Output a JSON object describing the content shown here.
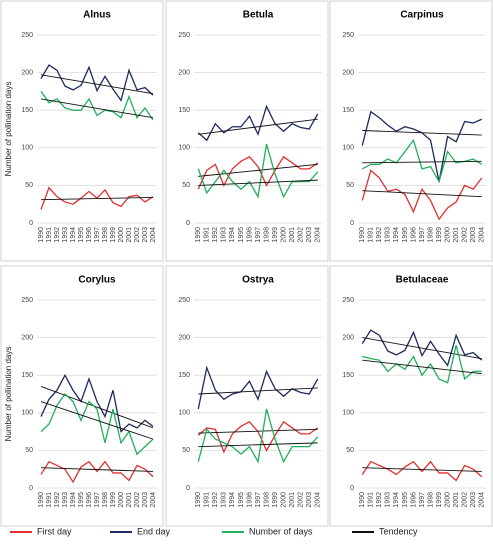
{
  "chart_data": [
    {
      "type": "line",
      "title": "Alnus",
      "ylabel": "Number of pollination days",
      "x": [
        1990,
        1991,
        1992,
        1993,
        1994,
        1995,
        1996,
        1997,
        1998,
        1999,
        2000,
        2001,
        2002,
        2003,
        2004
      ],
      "ylim": [
        0,
        250
      ],
      "yticks": [
        0,
        50,
        100,
        150,
        200,
        250
      ],
      "grid": true,
      "series": [
        {
          "name": "First day",
          "color": "#e03030",
          "values": [
            18,
            47,
            35,
            28,
            25,
            33,
            42,
            33,
            44,
            27,
            22,
            35,
            37,
            28,
            35
          ],
          "trend": [
            31,
            34
          ]
        },
        {
          "name": "End day",
          "color": "#1f2a5c",
          "values": [
            192,
            210,
            203,
            182,
            177,
            183,
            207,
            176,
            195,
            178,
            163,
            203,
            177,
            180,
            170
          ],
          "trend": [
            197,
            172
          ]
        },
        {
          "name": "Number of days",
          "color": "#1fb05a",
          "values": [
            175,
            160,
            165,
            153,
            150,
            150,
            165,
            143,
            150,
            148,
            140,
            168,
            140,
            153,
            137
          ],
          "trend": [
            165,
            140
          ]
        }
      ]
    },
    {
      "type": "line",
      "title": "Betula",
      "x": [
        1990,
        1991,
        1992,
        1993,
        1994,
        1995,
        1996,
        1997,
        1998,
        1999,
        2000,
        2001,
        2002,
        2003,
        2004
      ],
      "ylim": [
        0,
        250
      ],
      "yticks": [
        0,
        50,
        100,
        150,
        200,
        250
      ],
      "grid": true,
      "series": [
        {
          "name": "First day",
          "color": "#e03030",
          "values": [
            45,
            70,
            78,
            50,
            72,
            82,
            88,
            75,
            50,
            70,
            88,
            80,
            72,
            72,
            80
          ],
          "trend": [
            62,
            78
          ]
        },
        {
          "name": "End day",
          "color": "#1f2a5c",
          "values": [
            120,
            110,
            132,
            120,
            128,
            128,
            142,
            118,
            155,
            132,
            122,
            132,
            127,
            125,
            145
          ],
          "trend": [
            118,
            138
          ]
        },
        {
          "name": "Number of days",
          "color": "#1fb05a",
          "values": [
            72,
            40,
            55,
            70,
            55,
            45,
            55,
            35,
            105,
            65,
            35,
            55,
            55,
            55,
            68
          ],
          "trend": [
            50,
            57
          ]
        }
      ]
    },
    {
      "type": "line",
      "title": "Carpinus",
      "x": [
        1990,
        1991,
        1992,
        1993,
        1994,
        1995,
        1996,
        1997,
        1998,
        1999,
        2000,
        2001,
        2002,
        2003,
        2004
      ],
      "ylim": [
        0,
        250
      ],
      "yticks": [
        0,
        50,
        100,
        150,
        200,
        250
      ],
      "grid": true,
      "series": [
        {
          "name": "First day",
          "color": "#e03030",
          "values": [
            30,
            70,
            60,
            42,
            45,
            38,
            15,
            45,
            30,
            5,
            20,
            28,
            50,
            45,
            60
          ],
          "trend": [
            43,
            35
          ]
        },
        {
          "name": "End day",
          "color": "#1f2a5c",
          "values": [
            103,
            148,
            140,
            130,
            122,
            128,
            125,
            120,
            110,
            55,
            115,
            108,
            135,
            133,
            138
          ],
          "trend": [
            123,
            117
          ]
        },
        {
          "name": "Number of days",
          "color": "#1fb05a",
          "values": [
            72,
            78,
            78,
            85,
            80,
            95,
            110,
            72,
            75,
            55,
            95,
            80,
            82,
            85,
            78
          ],
          "trend": [
            80,
            82
          ]
        }
      ]
    },
    {
      "type": "line",
      "title": "Corylus",
      "ylabel": "Number of pollination days",
      "x": [
        1990,
        1991,
        1992,
        1993,
        1994,
        1995,
        1996,
        1997,
        1998,
        1999,
        2000,
        2001,
        2002,
        2003,
        2004
      ],
      "ylim": [
        0,
        250
      ],
      "yticks": [
        0,
        50,
        100,
        150,
        200,
        250
      ],
      "grid": true,
      "series": [
        {
          "name": "First day",
          "color": "#e03030",
          "values": [
            18,
            35,
            30,
            25,
            8,
            28,
            35,
            22,
            35,
            20,
            20,
            10,
            30,
            25,
            15
          ],
          "trend": [
            27,
            22
          ]
        },
        {
          "name": "End day",
          "color": "#1f2a5c",
          "values": [
            95,
            118,
            130,
            150,
            130,
            115,
            145,
            115,
            95,
            130,
            75,
            85,
            80,
            90,
            82
          ],
          "trend": [
            135,
            80
          ]
        },
        {
          "name": "Number of days",
          "color": "#1fb05a",
          "values": [
            75,
            85,
            110,
            125,
            115,
            90,
            115,
            105,
            60,
            105,
            60,
            75,
            45,
            55,
            65
          ],
          "trend": [
            115,
            65
          ]
        }
      ]
    },
    {
      "type": "line",
      "title": "Ostrya",
      "x": [
        1990,
        1991,
        1992,
        1993,
        1994,
        1995,
        1996,
        1997,
        1998,
        1999,
        2000,
        2001,
        2002,
        2003,
        2004
      ],
      "ylim": [
        0,
        250
      ],
      "yticks": [
        0,
        50,
        100,
        150,
        200,
        250
      ],
      "grid": true,
      "series": [
        {
          "name": "First day",
          "color": "#e03030",
          "values": [
            70,
            80,
            78,
            48,
            72,
            82,
            88,
            75,
            50,
            70,
            88,
            80,
            72,
            72,
            80
          ],
          "trend": [
            73,
            78
          ]
        },
        {
          "name": "End day",
          "color": "#1f2a5c",
          "values": [
            105,
            160,
            130,
            118,
            125,
            128,
            142,
            118,
            155,
            132,
            122,
            132,
            127,
            125,
            145
          ],
          "trend": [
            125,
            133
          ]
        },
        {
          "name": "Number of days",
          "color": "#1fb05a",
          "values": [
            35,
            78,
            65,
            60,
            55,
            45,
            55,
            35,
            105,
            65,
            35,
            55,
            55,
            55,
            68
          ],
          "trend": [
            55,
            60
          ]
        }
      ]
    },
    {
      "type": "line",
      "title": "Betulaceae",
      "x": [
        1990,
        1991,
        1992,
        1993,
        1994,
        1995,
        1996,
        1997,
        1998,
        1999,
        2000,
        2001,
        2002,
        2003,
        2004
      ],
      "ylim": [
        0,
        250
      ],
      "yticks": [
        0,
        50,
        100,
        150,
        200,
        250
      ],
      "grid": true,
      "series": [
        {
          "name": "First day",
          "color": "#e03030",
          "values": [
            18,
            35,
            30,
            25,
            18,
            28,
            35,
            22,
            35,
            20,
            20,
            10,
            30,
            25,
            15
          ],
          "trend": [
            27,
            22
          ]
        },
        {
          "name": "End day",
          "color": "#1f2a5c",
          "values": [
            192,
            210,
            203,
            182,
            177,
            183,
            207,
            176,
            195,
            178,
            163,
            203,
            177,
            180,
            170
          ],
          "trend": [
            200,
            172
          ]
        },
        {
          "name": "Number of days",
          "color": "#1fb05a",
          "values": [
            175,
            172,
            170,
            155,
            165,
            158,
            175,
            150,
            165,
            145,
            140,
            190,
            145,
            155,
            155
          ],
          "trend": [
            170,
            152
          ]
        }
      ]
    }
  ],
  "tendency": {
    "name": "Tendency",
    "color": "#111111"
  }
}
